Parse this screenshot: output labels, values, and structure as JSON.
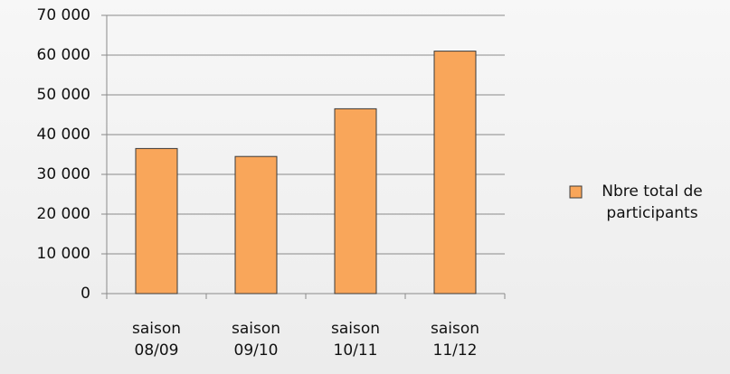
{
  "chart_data": {
    "type": "bar",
    "categories": [
      "saison 08/09",
      "saison 09/10",
      "saison 10/11",
      "saison 11/12"
    ],
    "series": [
      {
        "name": "Nbre total de participants",
        "color": "#f9a65a",
        "values": [
          36500,
          34500,
          46500,
          61000
        ]
      }
    ],
    "ylim": [
      0,
      70000
    ],
    "yticks": [
      0,
      {
        "value": 10000,
        "label": "10 000"
      },
      {
        "value": 20000,
        "label": "20 000"
      },
      {
        "value": 30000,
        "label": "30 000"
      },
      {
        "value": 40000,
        "label": "40 000"
      },
      {
        "value": 50000,
        "label": "50 000"
      },
      {
        "value": 60000,
        "label": "60 000"
      },
      {
        "value": 70000,
        "label": "70 000"
      }
    ],
    "grid": true,
    "legend": "right"
  }
}
